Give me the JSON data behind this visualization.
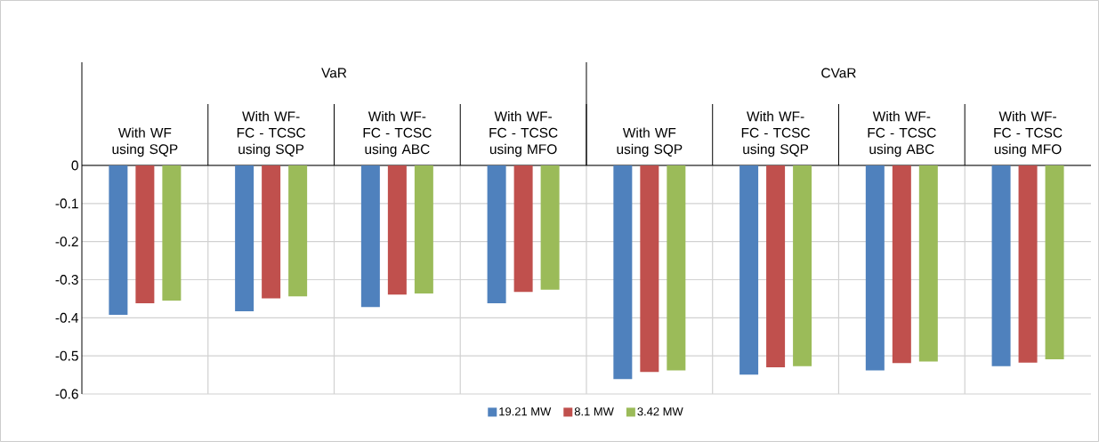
{
  "chart_data": {
    "type": "bar",
    "categories": [
      "With WF using SQP",
      "With WF-FC - TCSC using SQP",
      "With WF-FC - TCSC using ABC",
      "With WF-FC - TCSC using MFO",
      "With WF using SQP",
      "With WF-FC - TCSC using SQP",
      "With WF-FC - TCSC using ABC",
      "With WF-FC - TCSC using MFO"
    ],
    "annotations": [
      "VaR",
      "CVaR"
    ],
    "series": [
      {
        "name": "19.21 MW",
        "color": "#4f81bd",
        "values": [
          -0.392,
          -0.383,
          -0.372,
          -0.362,
          -0.561,
          -0.549,
          -0.538,
          -0.527
        ]
      },
      {
        "name": "8.1 MW",
        "color": "#c0504d",
        "values": [
          -0.362,
          -0.349,
          -0.339,
          -0.332,
          -0.542,
          -0.53,
          -0.519,
          -0.518
        ]
      },
      {
        "name": "3.42 MW",
        "color": "#9bbb59",
        "values": [
          -0.355,
          -0.344,
          -0.336,
          -0.326,
          -0.538,
          -0.527,
          -0.515,
          -0.509
        ]
      }
    ],
    "ylim": [
      -0.6,
      0
    ],
    "yticks": [
      0,
      -0.1,
      -0.2,
      -0.3,
      -0.4,
      -0.5,
      -0.6
    ],
    "grid": true,
    "legend": "bottom"
  }
}
